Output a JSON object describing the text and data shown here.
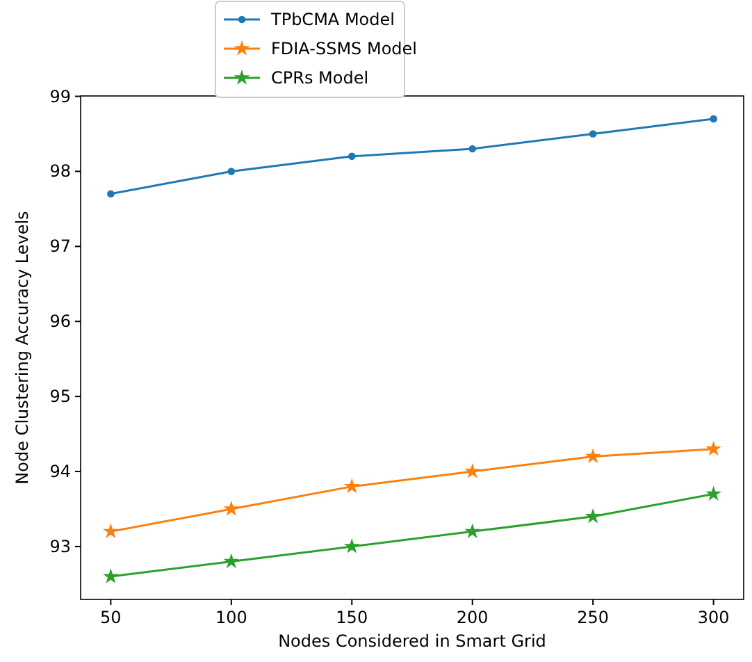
{
  "chart_data": {
    "type": "line",
    "xlabel": "Nodes Considered in Smart Grid",
    "ylabel": "Node Clustering Accuracy Levels",
    "x": [
      50,
      100,
      150,
      200,
      250,
      300
    ],
    "series": [
      {
        "name": "TPbCMA Model",
        "color": "#1f77b4",
        "marker": "circle",
        "values": [
          97.7,
          98.0,
          98.2,
          98.3,
          98.5,
          98.7
        ]
      },
      {
        "name": "FDIA-SSMS Model",
        "color": "#ff7f0e",
        "marker": "star",
        "values": [
          93.2,
          93.5,
          93.8,
          94.0,
          94.2,
          94.3
        ]
      },
      {
        "name": "CPRs Model",
        "color": "#2ca02c",
        "marker": "star",
        "values": [
          92.6,
          92.8,
          93.0,
          93.2,
          93.4,
          93.7
        ]
      }
    ],
    "xlim": [
      37.5,
      312.5
    ],
    "ylim": [
      92.295,
      99.005
    ],
    "xticks": [
      50,
      100,
      150,
      200,
      250,
      300
    ],
    "yticks": [
      93,
      94,
      95,
      96,
      97,
      98,
      99
    ],
    "legend": "top left",
    "grid": false,
    "line_style": "solid"
  }
}
